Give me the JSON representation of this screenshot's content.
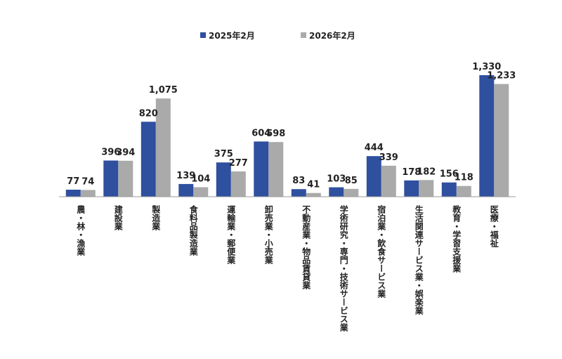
{
  "colors": {
    "series_2025": "#2F4F9F",
    "series_2026": "#AAAAAA",
    "axis": "#999999"
  },
  "chart_data": {
    "type": "bar",
    "title": "",
    "xlabel": "",
    "ylabel": "",
    "ylim": [
      0,
      1400
    ],
    "grid": false,
    "legend": "top-center",
    "categories": [
      "農・林・漁業",
      "建設業",
      "製造業",
      "食料品製造業",
      "運輸業・郵便業",
      "卸売業・小売業",
      "不動産業・物品賃貸業",
      "学術研究・専門・技術サービス業",
      "宿泊業・飲食サービス業",
      "生活関連サービス業・娯楽業",
      "教育・学習支援業",
      "医療・福祉"
    ],
    "series": [
      {
        "name": "2025年2月",
        "values": [
          77,
          396,
          820,
          139,
          375,
          604,
          83,
          103,
          444,
          178,
          156,
          1330
        ],
        "labels": [
          "77",
          "396",
          "820",
          "139",
          "375",
          "604",
          "83",
          "103",
          "444",
          "178",
          "156",
          "1,330"
        ]
      },
      {
        "name": "2026年2月",
        "values": [
          74,
          394,
          1075,
          104,
          277,
          598,
          41,
          85,
          339,
          182,
          118,
          1233
        ],
        "labels": [
          "74",
          "394",
          "1,075",
          "104",
          "277",
          "598",
          "41",
          "85",
          "339",
          "182",
          "118",
          "1,233"
        ]
      }
    ]
  }
}
